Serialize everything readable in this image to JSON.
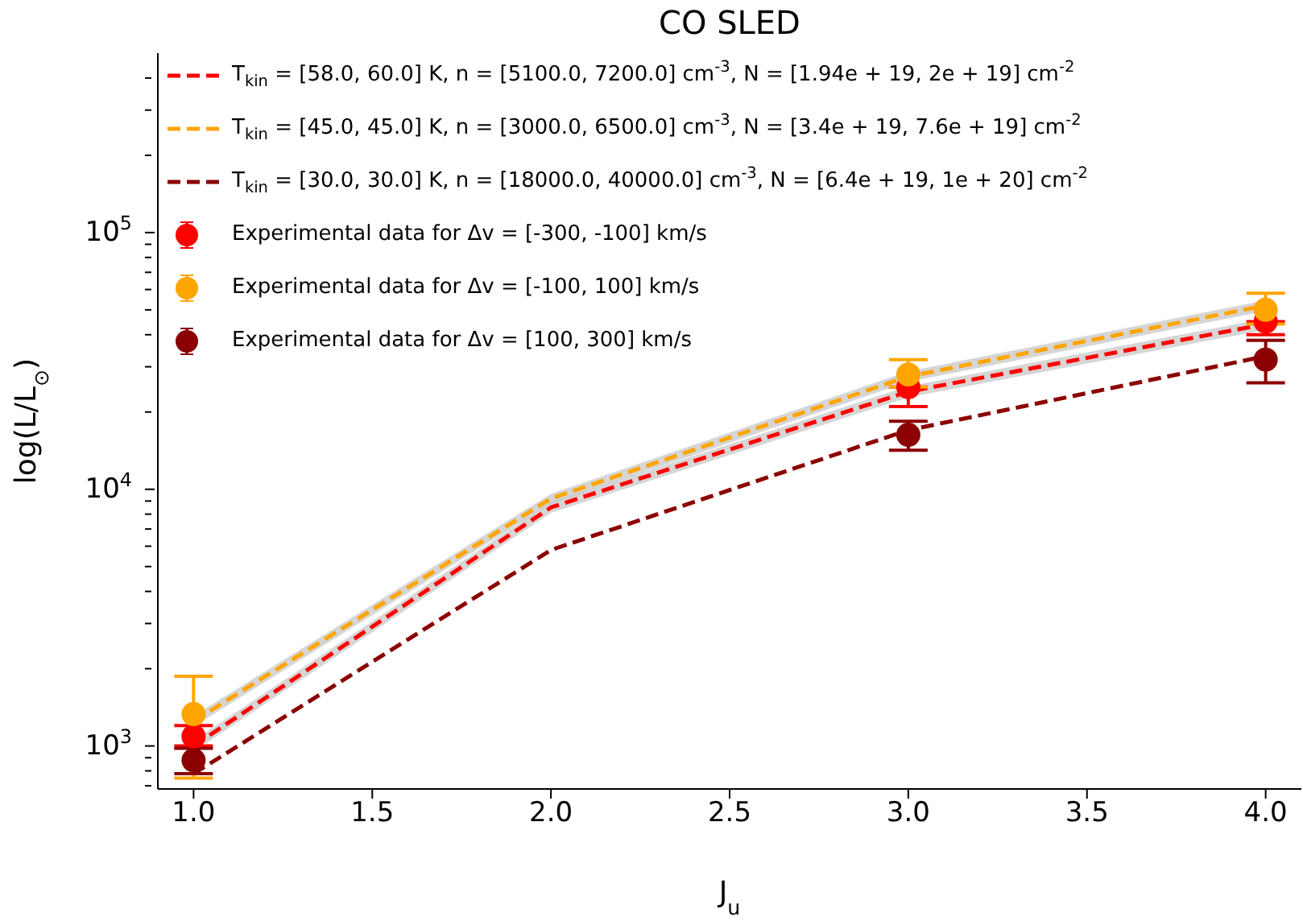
{
  "chart_data": {
    "type": "line",
    "title": "CO SLED",
    "xlabel": "J$_{u}$",
    "ylabel": "log(L/L$_{⊙}$)",
    "xlim": [
      0.9,
      4.1
    ],
    "xticks": [
      {
        "value": 1,
        "label": "1.0"
      },
      {
        "value": 1.5,
        "label": "1.5"
      },
      {
        "value": 2,
        "label": "2.0"
      },
      {
        "value": 2.5,
        "label": "2.5"
      },
      {
        "value": 3,
        "label": "3.0"
      },
      {
        "value": 3.5,
        "label": "3.5"
      },
      {
        "value": 4,
        "label": "4.0"
      }
    ],
    "ylim": [
      680,
      500000
    ],
    "log": "y",
    "yticks": [
      {
        "value": 700,
        "label": null
      },
      {
        "value": 800,
        "label": null
      },
      {
        "value": 900,
        "label": null
      },
      {
        "value": 1000,
        "label": "10$^{3}$"
      },
      {
        "value": 2000,
        "label": null
      },
      {
        "value": 3000,
        "label": null
      },
      {
        "value": 4000,
        "label": null
      },
      {
        "value": 5000,
        "label": null
      },
      {
        "value": 6000,
        "label": null
      },
      {
        "value": 7000,
        "label": null
      },
      {
        "value": 8000,
        "label": null
      },
      {
        "value": 9000,
        "label": null
      },
      {
        "value": 10000,
        "label": "10$^{4}$"
      },
      {
        "value": 20000,
        "label": null
      },
      {
        "value": 30000,
        "label": null
      },
      {
        "value": 40000,
        "label": null
      },
      {
        "value": 50000,
        "label": null
      },
      {
        "value": 60000,
        "label": null
      },
      {
        "value": 70000,
        "label": null
      },
      {
        "value": 80000,
        "label": null
      },
      {
        "value": 90000,
        "label": null
      },
      {
        "value": 100000,
        "label": "10$^{5}$"
      },
      {
        "value": 200000,
        "label": null
      },
      {
        "value": 300000,
        "label": null
      },
      {
        "value": 400000,
        "label": null
      }
    ],
    "legend": "top left",
    "series": [
      {
        "name": "T$_{kin}$ = [58.0, 60.0] K, n = [5100.0, 7200.0] cm$^{-3}$, N = [1.94e + 19, 2e + 19] cm$^{-2}$",
        "line_style": "dashed",
        "marker": "none",
        "color": "#ff0000",
        "x": [
          1,
          2,
          3,
          4
        ],
        "values": [
          1000,
          8500,
          24000,
          44000
        ],
        "lower": [
          950,
          8100,
          22800,
          41800
        ],
        "upper": [
          1050,
          8900,
          25200,
          46200
        ]
      },
      {
        "name": "T$_{kin}$ = [45.0, 45.0] K, n = [3000.0, 6500.0] cm$^{-3}$, N = [3.4e + 19, 7.6e + 19] cm$^{-2}$",
        "line_style": "dashed",
        "marker": "none",
        "color": "#ffa500",
        "x": [
          1,
          2,
          3,
          4
        ],
        "values": [
          1250,
          9200,
          27500,
          52000
        ],
        "lower": [
          1190,
          8800,
          26200,
          49500
        ],
        "upper": [
          1310,
          9600,
          28800,
          54500
        ]
      },
      {
        "name": "T$_{kin}$ = [30.0, 30.0] K, n = [18000.0, 40000.0] cm$^{-3}$, N = [6.4e + 19, 1e + 20] cm$^{-2}$",
        "line_style": "dashed",
        "marker": "none",
        "color": "#8b0000",
        "x": [
          1,
          2,
          3,
          4
        ],
        "values": [
          780,
          5800,
          17000,
          33000
        ]
      },
      {
        "name": "Experimental data for Δv = [-300, -100] km/s",
        "type": "scatter",
        "marker": "circle",
        "color": "#ff0000",
        "x": [
          1,
          3,
          4
        ],
        "values": [
          1090,
          25000,
          45000
        ],
        "errors": [
          [
            1000,
            1200
          ],
          [
            21000,
            25000
          ],
          [
            40000,
            45000
          ]
        ]
      },
      {
        "name": "Experimental data for Δv = [-100, 100] km/s",
        "type": "scatter",
        "marker": "circle",
        "color": "#ffa500",
        "x": [
          1,
          3,
          4
        ],
        "values": [
          1330,
          28000,
          50000
        ],
        "errors": [
          [
            750,
            1870
          ],
          [
            25000,
            32000
          ],
          [
            44000,
            58000
          ]
        ]
      },
      {
        "name": "Experimental data for Δv = [100, 300] km/s",
        "type": "scatter",
        "marker": "circle",
        "color": "#8b0000",
        "x": [
          1,
          3,
          4
        ],
        "values": [
          880,
          16300,
          32000
        ],
        "errors": [
          [
            780,
            980
          ],
          [
            14200,
            18400
          ],
          [
            26000,
            38000
          ]
        ]
      }
    ]
  }
}
